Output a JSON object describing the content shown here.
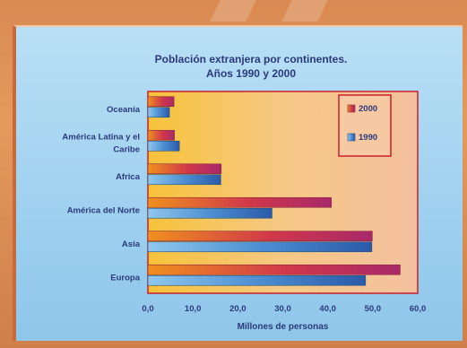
{
  "chart_data": {
    "type": "bar",
    "orientation": "horizontal",
    "title_line1": "Población extranjera por continentes.",
    "title_line2": "Años 1990 y 2000",
    "xlabel": "Millones de personas",
    "ylabel": "",
    "xlim": [
      0,
      60
    ],
    "x_ticks": [
      "0,0",
      "10,0",
      "20,0",
      "30,0",
      "40,0",
      "50,0",
      "60,0"
    ],
    "categories": [
      "Oceanía",
      "América Latina y el|Caribe",
      "Africa",
      "América del Norte",
      "Asia",
      "Europa"
    ],
    "series": [
      {
        "name": "2000",
        "color": "#e8642a",
        "values": [
          5.8,
          5.9,
          16.3,
          40.8,
          49.9,
          56.1
        ]
      },
      {
        "name": "1990",
        "color": "#4f8fd6",
        "values": [
          4.8,
          7.0,
          16.2,
          27.6,
          49.8,
          48.4
        ]
      }
    ],
    "legend_position": "top-right",
    "grid": false
  }
}
